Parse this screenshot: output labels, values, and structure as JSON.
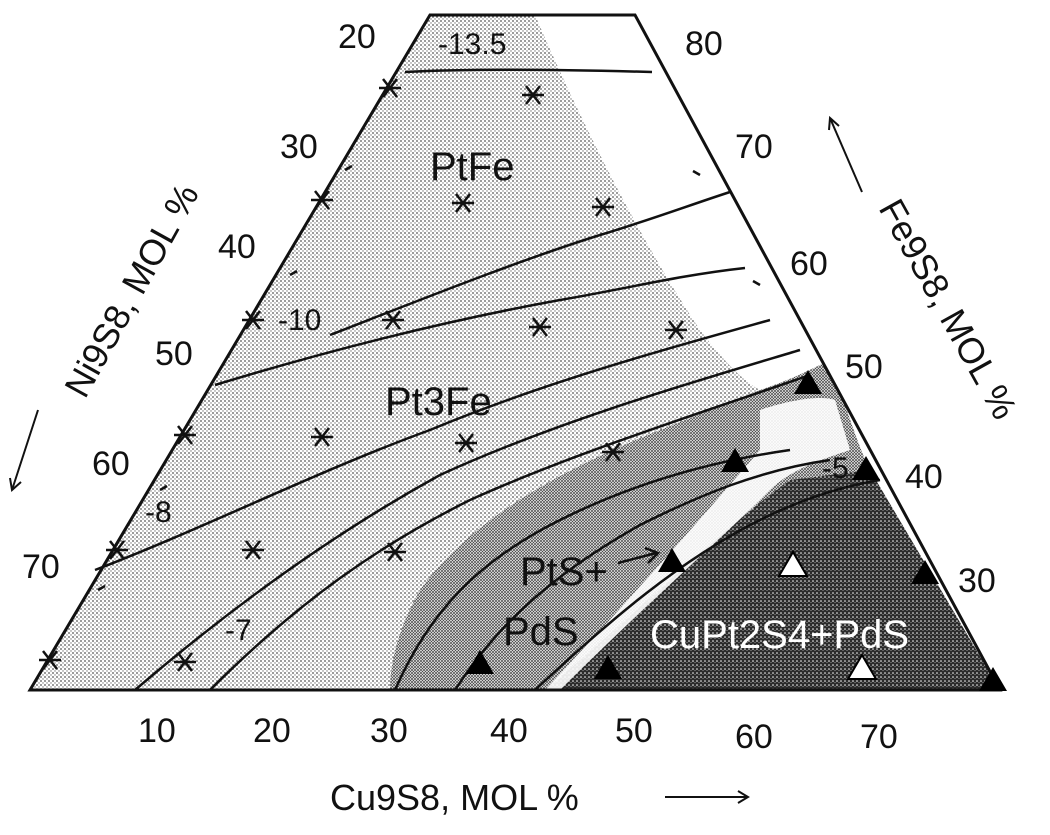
{
  "diagram": {
    "bottom_axis": {
      "label": "Cu9S8, MOL %",
      "ticks": [
        "10",
        "20",
        "30",
        "40",
        "50",
        "60",
        "70"
      ]
    },
    "left_axis": {
      "label": "Ni9S8, MOL %",
      "ticks": [
        "20",
        "30",
        "40",
        "50",
        "60",
        "70"
      ]
    },
    "right_axis": {
      "label": "Fe9S8, MOL %",
      "ticks": [
        "80",
        "70",
        "60",
        "50",
        "40",
        "30"
      ]
    },
    "phases": {
      "ptfe": "PtFe",
      "pt3fe": "Pt3Fe",
      "pts": "PtS+",
      "pds": "PdS",
      "cupt2s4": "CuPt2S4+PdS"
    },
    "isopleths": {
      "m13_5": "-13.5",
      "m10": "-10",
      "m8": "-8",
      "m7": "-7",
      "m5": "-5"
    },
    "colors": {
      "ink": "#111111",
      "light_stipple": "#d8d8d8",
      "medium_stipple": "#a8a8a8",
      "dark_region": "#3a3a3a"
    },
    "icons": {
      "star_marker": "asterisk-marker-icon",
      "triangle_marker": "triangle-marker-icon",
      "arrow": "arrow-icon"
    }
  }
}
